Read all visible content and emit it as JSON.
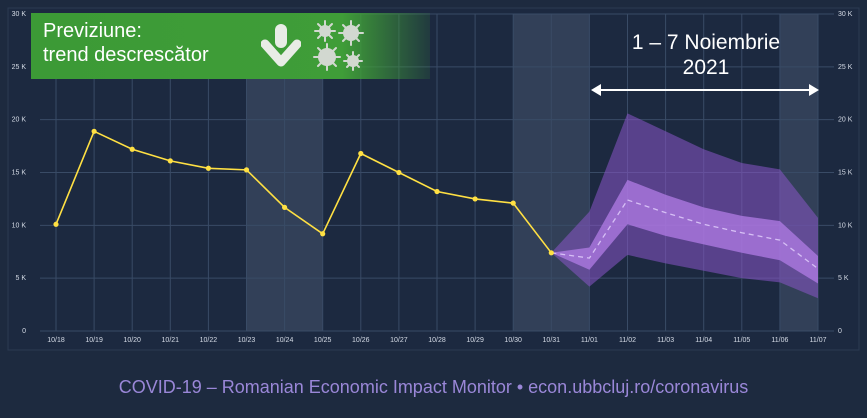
{
  "chart_data": {
    "type": "line",
    "categories": [
      "10/18",
      "10/19",
      "10/20",
      "10/21",
      "10/22",
      "10/23",
      "10/24",
      "10/25",
      "10/26",
      "10/27",
      "10/28",
      "10/29",
      "10/30",
      "10/31",
      "11/01",
      "11/02",
      "11/03",
      "11/04",
      "11/05",
      "11/06",
      "11/07"
    ],
    "ylim": [
      0,
      30000
    ],
    "y_ticks": [
      {
        "value": 0,
        "label": "0"
      },
      {
        "value": 5000,
        "label": "5 K"
      },
      {
        "value": 10000,
        "label": "10 K"
      },
      {
        "value": 15000,
        "label": "15 K"
      },
      {
        "value": 20000,
        "label": "20 K"
      },
      {
        "value": 25000,
        "label": "25 K"
      },
      {
        "value": 30000,
        "label": "30 K"
      }
    ],
    "series": [
      {
        "type": "line",
        "color": "#ffe043",
        "x": [
          "10/18",
          "10/19",
          "10/20",
          "10/21",
          "10/22",
          "10/23",
          "10/24",
          "10/25",
          "10/26",
          "10/27",
          "10/28",
          "10/29",
          "10/30",
          "10/31"
        ],
        "values": [
          10100,
          18900,
          17200,
          16100,
          15400,
          15250,
          11700,
          9200,
          16800,
          15000,
          13200,
          12500,
          12100,
          7400
        ]
      },
      {
        "type": "forecast",
        "color": "#d6bff5",
        "x": [
          "10/31",
          "11/01",
          "11/02",
          "11/03",
          "11/04",
          "11/05",
          "11/06",
          "11/07"
        ],
        "median": [
          7400,
          6900,
          12400,
          11200,
          10100,
          9300,
          8600,
          5900
        ],
        "inner_lower": [
          7400,
          5800,
          10100,
          9000,
          8200,
          7400,
          6700,
          4500
        ],
        "inner_upper": [
          7400,
          7900,
          14300,
          12900,
          11700,
          10900,
          10400,
          7100
        ],
        "outer_lower": [
          7400,
          4200,
          7200,
          6400,
          5700,
          5000,
          4600,
          3100
        ],
        "outer_upper": [
          7400,
          11300,
          20600,
          18900,
          17200,
          15900,
          15300,
          10700
        ]
      }
    ],
    "shaded_periods": [
      [
        "10/23",
        "10/25"
      ],
      [
        "10/30",
        "11/01"
      ],
      [
        "11/06",
        "11/07"
      ]
    ],
    "grid": true
  },
  "banner": {
    "line1": "Previziune:",
    "line2": "trend descrescător",
    "color": "#3f9d38",
    "arrow_icon": "down-arrow-icon",
    "virus_icon": "virus-icon"
  },
  "period_label": {
    "line1": "1 – 7 Noiembrie",
    "line2": "2021"
  },
  "footer": {
    "text": "COVID-19 – Romanian Economic Impact Monitor • econ.ubbcluj.ro/coronavirus",
    "color": "#9a87d8"
  }
}
